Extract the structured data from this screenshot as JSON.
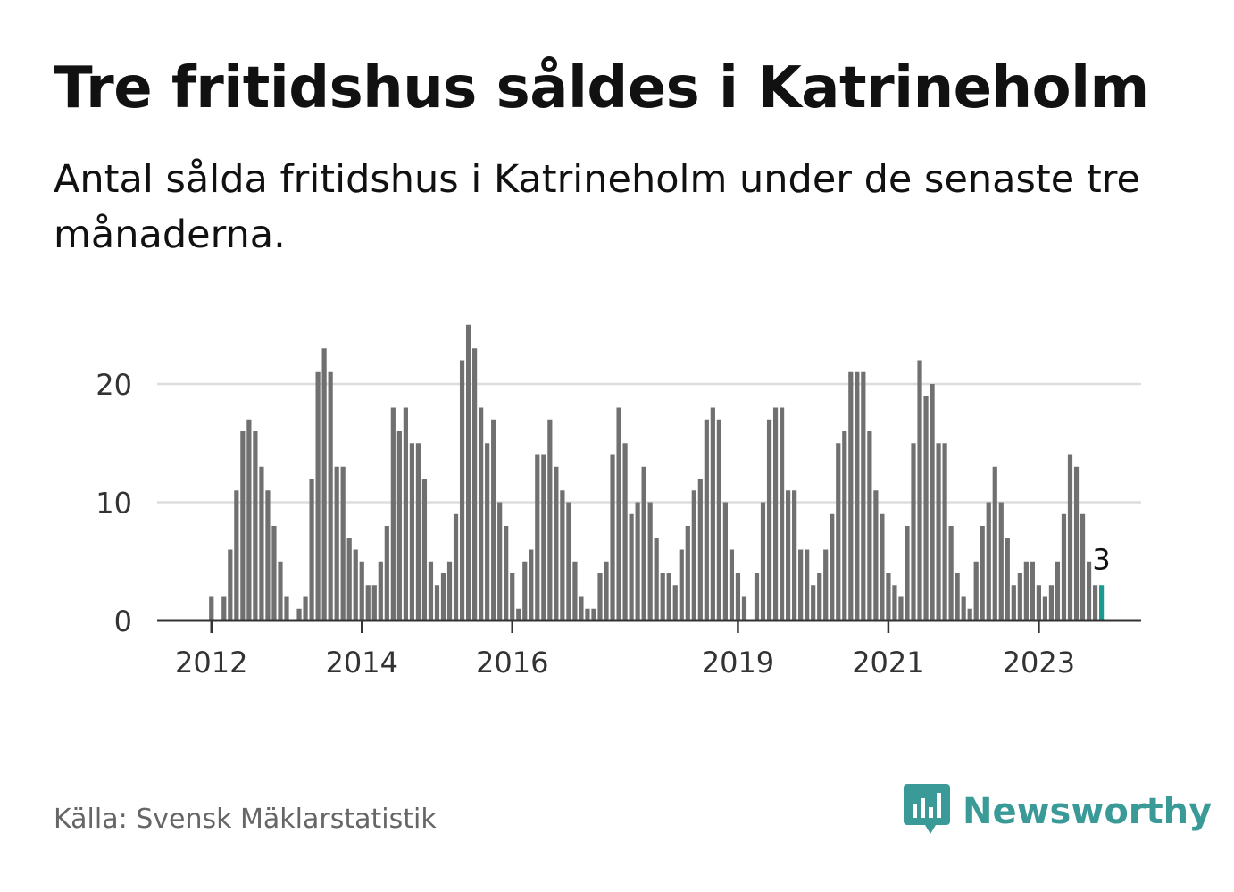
{
  "title": "Tre fritidshus såldes i Katrineholm",
  "subtitle": "Antal sålda fritidshus i Katrineholm under de senaste tre månaderna.",
  "source": "Källa: Svensk Mäklarstatistik",
  "brand": {
    "name": "Newsworthy",
    "icon": "newsworthy-logo-icon",
    "color": "#3a9a98"
  },
  "colors": {
    "bars": "#707070",
    "highlight": "#1a9a90",
    "grid": "#dddddd",
    "axis": "#333333"
  },
  "chart_data": {
    "type": "bar",
    "title": "Tre fritidshus såldes i Katrineholm",
    "xlabel": "",
    "ylabel": "",
    "ylim": [
      0,
      26
    ],
    "yticks": [
      0,
      10,
      20
    ],
    "xticks": [
      "2012",
      "2014",
      "2016",
      "2019",
      "2021",
      "2023"
    ],
    "grid": true,
    "start_month": "2011-05",
    "end_month": "2023-10",
    "values": [
      0,
      0,
      0,
      0,
      0,
      0,
      0,
      0,
      2,
      0,
      2,
      6,
      11,
      16,
      17,
      16,
      13,
      11,
      8,
      5,
      2,
      0,
      1,
      2,
      12,
      21,
      23,
      21,
      13,
      13,
      7,
      6,
      5,
      3,
      3,
      5,
      8,
      18,
      16,
      18,
      15,
      15,
      12,
      5,
      3,
      4,
      5,
      9,
      22,
      25,
      23,
      18,
      15,
      17,
      10,
      8,
      4,
      1,
      5,
      6,
      14,
      14,
      17,
      13,
      11,
      10,
      5,
      2,
      1,
      1,
      4,
      5,
      14,
      18,
      15,
      9,
      10,
      13,
      10,
      7,
      4,
      4,
      3,
      6,
      8,
      11,
      12,
      17,
      18,
      17,
      10,
      6,
      4,
      2,
      0,
      4,
      10,
      17,
      18,
      18,
      11,
      11,
      6,
      6,
      3,
      4,
      6,
      9,
      15,
      16,
      21,
      21,
      21,
      16,
      11,
      9,
      4,
      3,
      2,
      8,
      15,
      22,
      19,
      20,
      15,
      15,
      8,
      4,
      2,
      1,
      5,
      8,
      10,
      13,
      10,
      7,
      3,
      4,
      5,
      5,
      3,
      2,
      3,
      5,
      9,
      14,
      13,
      9,
      5,
      3,
      3
    ],
    "highlight_last": 1,
    "last_value_label": "3"
  }
}
